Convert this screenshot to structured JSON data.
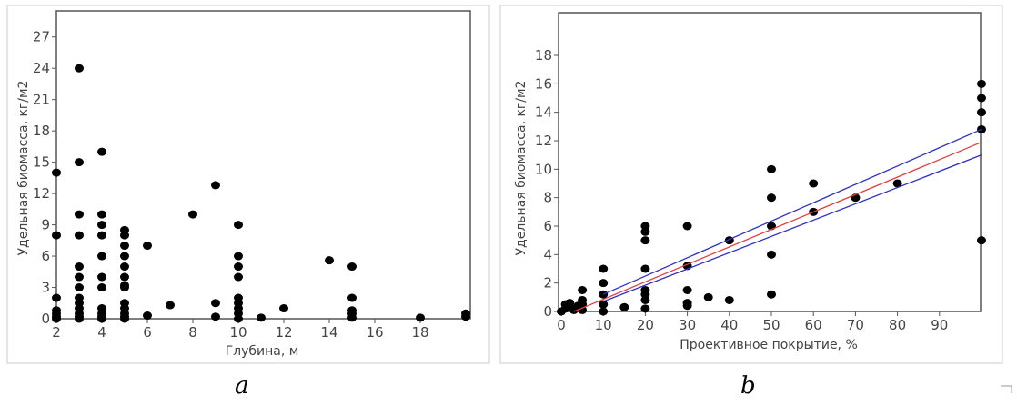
{
  "chart_data": [
    {
      "type": "scatter",
      "panel_label": "a",
      "xlabel": "Глубина, м",
      "ylabel": "Удельная биомасса, кг/м2",
      "xlim": [
        2,
        20.2
      ],
      "ylim": [
        0,
        29.5
      ],
      "xticks": [
        2,
        4,
        6,
        8,
        10,
        12,
        14,
        16,
        18
      ],
      "yticks": [
        0,
        3,
        6,
        9,
        12,
        15,
        18,
        21,
        24,
        27
      ],
      "points": [
        [
          2,
          14
        ],
        [
          2,
          8
        ],
        [
          2,
          2
        ],
        [
          2,
          0.8
        ],
        [
          2,
          0.5
        ],
        [
          2,
          0.2
        ],
        [
          2,
          0
        ],
        [
          3,
          24
        ],
        [
          3,
          15
        ],
        [
          3,
          10
        ],
        [
          3,
          8
        ],
        [
          3,
          5
        ],
        [
          3,
          4
        ],
        [
          3,
          3
        ],
        [
          3,
          2
        ],
        [
          3,
          1.5
        ],
        [
          3,
          1
        ],
        [
          3,
          0.5
        ],
        [
          3,
          0.2
        ],
        [
          3,
          0
        ],
        [
          4,
          16
        ],
        [
          4,
          10
        ],
        [
          4,
          9
        ],
        [
          4,
          8
        ],
        [
          4,
          6
        ],
        [
          4,
          4
        ],
        [
          4,
          3
        ],
        [
          4,
          1
        ],
        [
          4,
          0.5
        ],
        [
          4,
          0.2
        ],
        [
          4,
          0
        ],
        [
          5,
          8.5
        ],
        [
          5,
          8
        ],
        [
          5,
          7
        ],
        [
          5,
          6
        ],
        [
          5,
          5
        ],
        [
          5,
          4
        ],
        [
          5,
          3.2
        ],
        [
          5,
          3
        ],
        [
          5,
          1.5
        ],
        [
          5,
          1
        ],
        [
          5,
          0.5
        ],
        [
          5,
          0.2
        ],
        [
          5,
          0
        ],
        [
          6,
          7
        ],
        [
          6,
          0.3
        ],
        [
          7,
          1.3
        ],
        [
          8,
          10
        ],
        [
          9,
          12.8
        ],
        [
          9,
          1.5
        ],
        [
          9,
          0.2
        ],
        [
          10,
          9
        ],
        [
          10,
          6
        ],
        [
          10,
          5
        ],
        [
          10,
          4
        ],
        [
          10,
          2
        ],
        [
          10,
          1.5
        ],
        [
          10,
          1
        ],
        [
          10,
          0.5
        ],
        [
          10,
          0
        ],
        [
          11,
          0.1
        ],
        [
          12,
          1
        ],
        [
          14,
          5.6
        ],
        [
          15,
          5
        ],
        [
          15,
          2
        ],
        [
          15,
          0.8
        ],
        [
          15,
          0.5
        ],
        [
          15,
          0.1
        ],
        [
          18,
          0.1
        ],
        [
          20,
          0.5
        ],
        [
          20,
          0.2
        ]
      ]
    },
    {
      "type": "scatter",
      "panel_label": "b",
      "xlabel": "Проективное покрытие, %",
      "ylabel": "Удельная биомасса, кг/м2",
      "xlim": [
        0,
        100
      ],
      "ylim": [
        0,
        21
      ],
      "xticks": [
        0,
        10,
        20,
        30,
        40,
        50,
        60,
        70,
        80,
        90
      ],
      "yticks": [
        0,
        2,
        4,
        6,
        8,
        10,
        12,
        14,
        16,
        18
      ],
      "points": [
        [
          0,
          0
        ],
        [
          1,
          0.2
        ],
        [
          1,
          0.5
        ],
        [
          2,
          0.6
        ],
        [
          2,
          0.3
        ],
        [
          3,
          0.1
        ],
        [
          4,
          0.4
        ],
        [
          5,
          1.5
        ],
        [
          5,
          0.8
        ],
        [
          5,
          0.5
        ],
        [
          5,
          0.1
        ],
        [
          10,
          3
        ],
        [
          10,
          2
        ],
        [
          10,
          1.2
        ],
        [
          10,
          0.5
        ],
        [
          10,
          0
        ],
        [
          15,
          0.3
        ],
        [
          20,
          6
        ],
        [
          20,
          5.6
        ],
        [
          20,
          5
        ],
        [
          20,
          3
        ],
        [
          20,
          1.5
        ],
        [
          20,
          1.2
        ],
        [
          20,
          0.8
        ],
        [
          20,
          0.2
        ],
        [
          30,
          6
        ],
        [
          30,
          3.2
        ],
        [
          30,
          1.5
        ],
        [
          30,
          0.6
        ],
        [
          30,
          0.4
        ],
        [
          35,
          1
        ],
        [
          40,
          5
        ],
        [
          40,
          0.8
        ],
        [
          50,
          10
        ],
        [
          50,
          8
        ],
        [
          50,
          6
        ],
        [
          50,
          4
        ],
        [
          50,
          1.2
        ],
        [
          60,
          9
        ],
        [
          60,
          7
        ],
        [
          70,
          8
        ],
        [
          80,
          9
        ],
        [
          100,
          16
        ],
        [
          100,
          15
        ],
        [
          100,
          14
        ],
        [
          100,
          12.8
        ],
        [
          100,
          5
        ]
      ],
      "lines": [
        {
          "name": "regression",
          "color": "#e04040",
          "from": [
            3,
            0
          ],
          "to": [
            100,
            11.9
          ]
        },
        {
          "name": "upper-confidence",
          "color": "#3030c0",
          "from": [
            10,
            1.2
          ],
          "to": [
            100,
            12.8
          ]
        },
        {
          "name": "lower-confidence",
          "color": "#3030c0",
          "from": [
            10,
            0.7
          ],
          "to": [
            100,
            11.0
          ]
        }
      ]
    }
  ]
}
